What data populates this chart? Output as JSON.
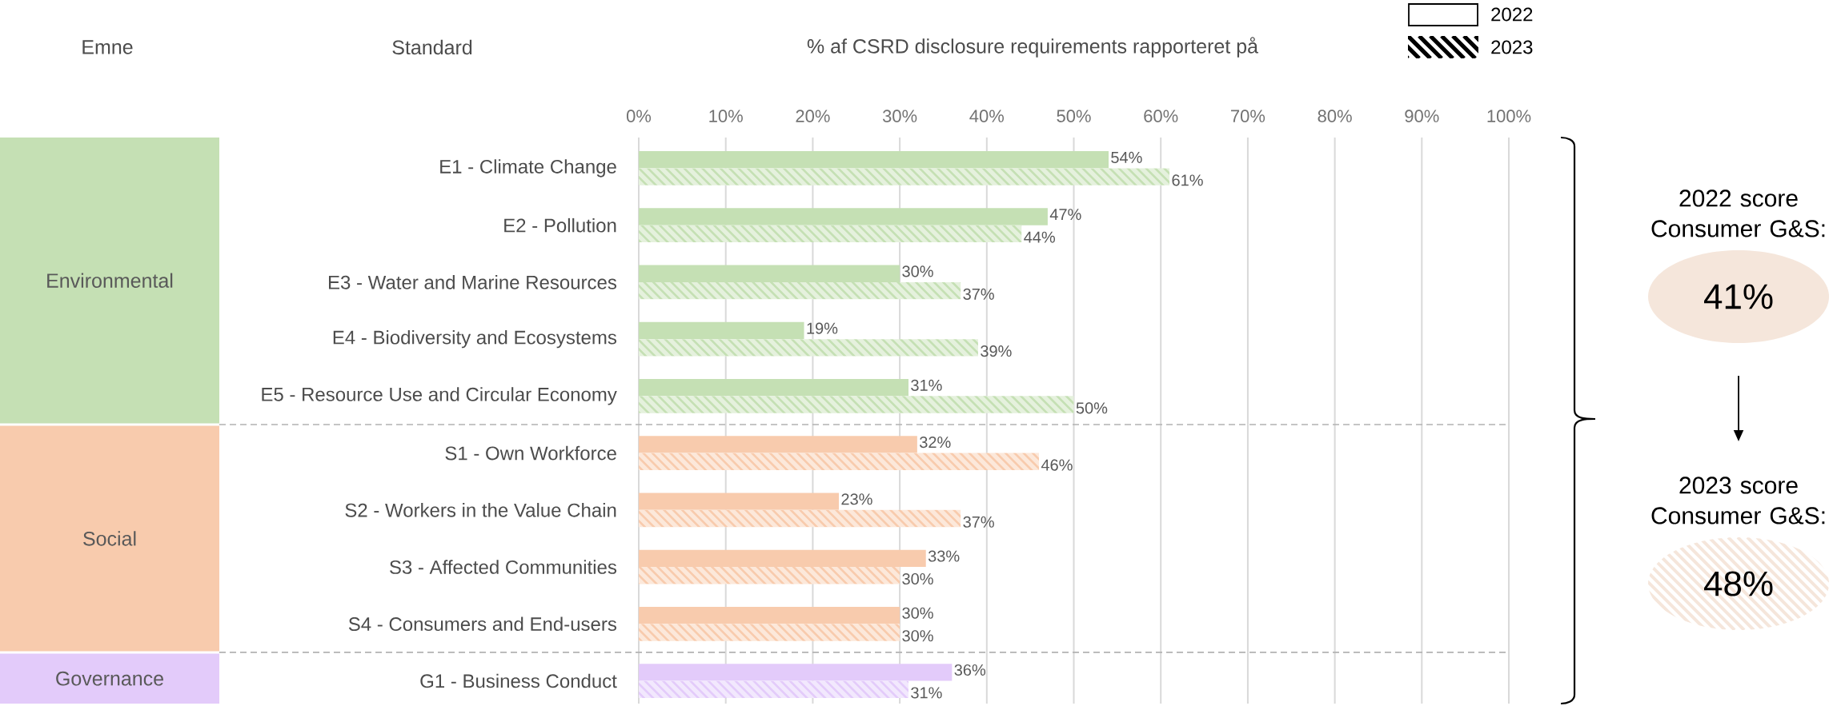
{
  "chart_data": {
    "type": "bar",
    "orientation": "horizontal",
    "xlabel": "% af CSRD disclosure requirements rapporteret på",
    "categories": [
      "E1 - Climate Change",
      "E2 - Pollution",
      "E3 - Water and Marine Resources",
      "E4 - Biodiversity and Ecosystems",
      "E5 - Resource Use and Circular Economy",
      "S1 - Own Workforce",
      "S2 - Workers in the Value Chain",
      "S3 - Affected Communities",
      "S4 - Consumers and End-users",
      "G1 - Business Conduct"
    ],
    "series": [
      {
        "name": "2022",
        "colors": [
          "#c5e0b4",
          "#c5e0b4",
          "#c5e0b4",
          "#c5e0b4",
          "#c5e0b4",
          "#f8cbad",
          "#f8cbad",
          "#f8cbad",
          "#f8cbad",
          "#e3cbfa"
        ],
        "values": [
          54,
          47,
          30,
          19,
          31,
          32,
          23,
          33,
          30,
          36
        ],
        "value_labels": [
          "54%",
          "47%",
          "30%",
          "19%",
          "31%",
          "32%",
          "23%",
          "33%",
          "30%",
          "36%"
        ]
      },
      {
        "name": "2023",
        "colors": [
          "#c5e0b4",
          "#c5e0b4",
          "#c5e0b4",
          "#c5e0b4",
          "#c5e0b4",
          "#f8cbad",
          "#f8cbad",
          "#f8cbad",
          "#f8cbad",
          "#e3cbfa"
        ],
        "values": [
          61,
          44,
          37,
          39,
          50,
          46,
          37,
          30,
          30,
          31
        ],
        "value_labels": [
          "61%",
          "44%",
          "37%",
          "39%",
          "50%",
          "46%",
          "37%",
          "30%",
          "30%",
          "31%"
        ]
      }
    ],
    "xlim": [
      0,
      100
    ],
    "xticks": [
      {
        "value": 0,
        "label": "0%"
      },
      {
        "value": 10,
        "label": "10%"
      },
      {
        "value": 20,
        "label": "20%"
      },
      {
        "value": 30,
        "label": "30%"
      },
      {
        "value": 40,
        "label": "40%"
      },
      {
        "value": 50,
        "label": "50%"
      },
      {
        "value": 60,
        "label": "60%"
      },
      {
        "value": 70,
        "label": "70%"
      },
      {
        "value": 80,
        "label": "80%"
      },
      {
        "value": 90,
        "label": "90%"
      },
      {
        "value": 100,
        "label": "100%"
      }
    ],
    "grid": "x",
    "legend": "top right",
    "annotations": [
      "Emne",
      "Standard",
      "Environmental",
      "Social",
      "Governance",
      "2022 score Consumer G&S:",
      "41%",
      "2023 score Consumer G&S:",
      "48%"
    ]
  }
}
